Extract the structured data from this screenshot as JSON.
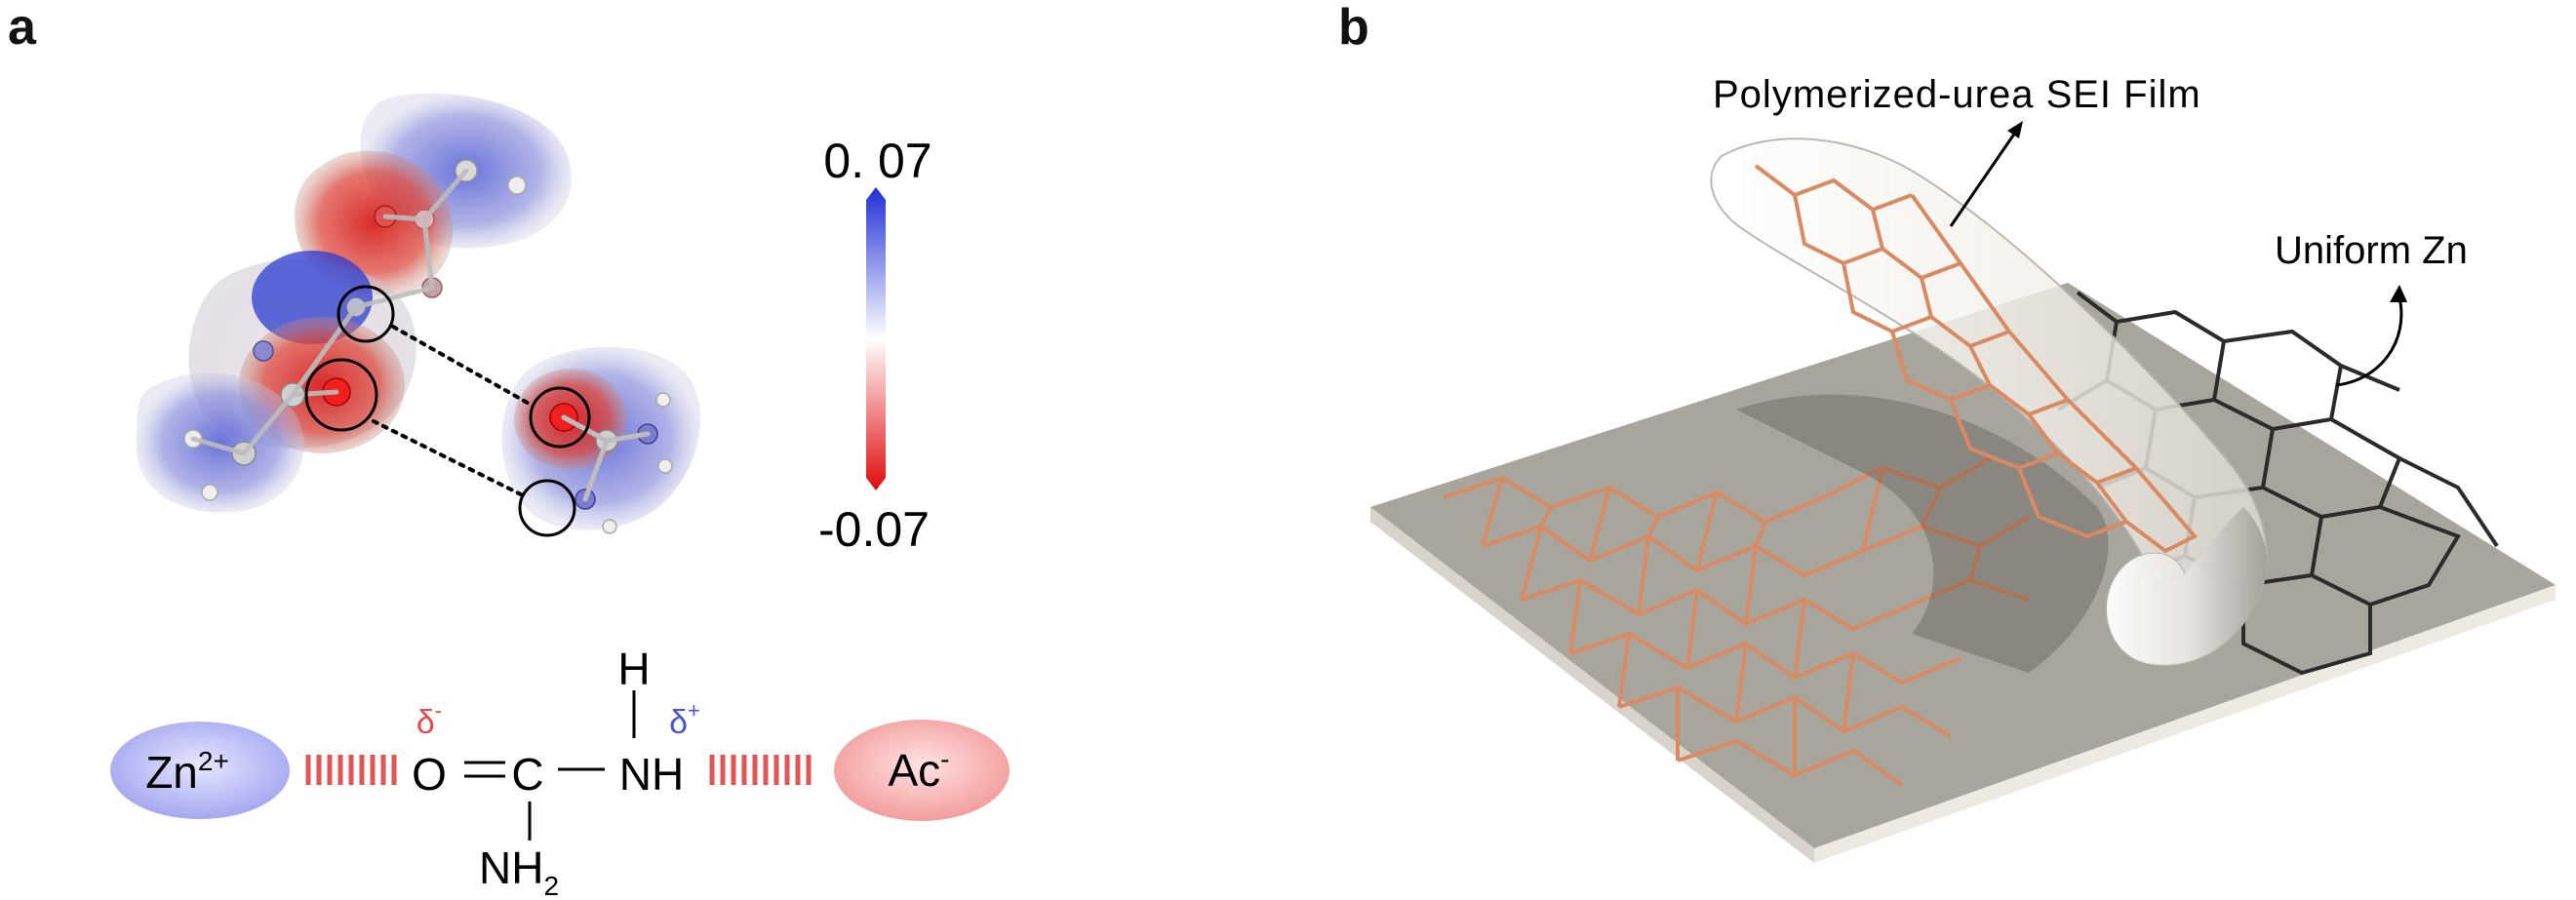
{
  "panels": {
    "a": {
      "label": "a",
      "colorbar": {
        "max_label": "0. 07",
        "min_label": "-0.07",
        "max_color": "#1f2fd6",
        "mid_color": "#ffffff",
        "min_color": "#e00a0a"
      },
      "scheme": {
        "cation": "Zn",
        "cation_charge": "2+",
        "anion": "Ac",
        "anion_charge": "-",
        "carbonyl_o": "O",
        "center_c": "C",
        "nh_group": "NH",
        "h_atom": "H",
        "nh2_base": "NH",
        "nh2_sub": "2",
        "delta_minus_symbol": "δ",
        "delta_minus_sign": "-",
        "delta_plus_symbol": "δ",
        "delta_plus_sign": "+",
        "delta_minus_color": "#e24b4b",
        "delta_plus_color": "#4a55c7",
        "cation_color": "#a9acf0",
        "anion_color": "#f3a1a1"
      }
    },
    "b": {
      "label": "b",
      "sei_label": "Polymerized-urea  SEI Film",
      "zn_label": "Uniform Zn",
      "film_line_color": "#d98a63",
      "zn_color": "#a8a59d"
    }
  }
}
